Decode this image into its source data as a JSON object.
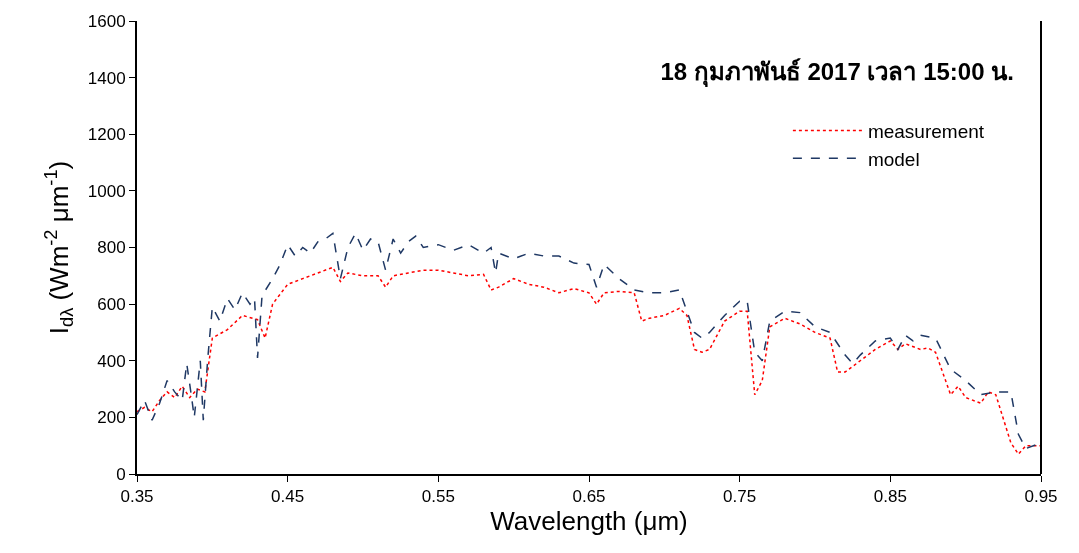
{
  "chart_data": {
    "type": "line",
    "title": "18 กุมภาพันธ์ 2017 เวลา 15:00 น.",
    "xlabel": "Wavelength (μm)",
    "ylabel": "I$_{dλ}$ (Wm$^{-2}$ μm$^{-1}$)",
    "xlim": [
      0.35,
      0.95
    ],
    "xticks": [
      0.35,
      0.45,
      0.55,
      0.65,
      0.75,
      0.85,
      0.95
    ],
    "ylim": [
      0,
      1600
    ],
    "yticks": [
      0,
      200,
      400,
      600,
      800,
      1000,
      1200,
      1400,
      1600
    ],
    "grid": false,
    "legend": "top right",
    "marker": "none",
    "series": [
      {
        "name": "measurement",
        "color": "#ff0000",
        "line_style": "dotted",
        "x": [
          0.35,
          0.355,
          0.36,
          0.365,
          0.37,
          0.375,
          0.38,
          0.385,
          0.39,
          0.395,
          0.4,
          0.41,
          0.42,
          0.43,
          0.435,
          0.44,
          0.45,
          0.46,
          0.47,
          0.48,
          0.485,
          0.49,
          0.5,
          0.51,
          0.515,
          0.52,
          0.53,
          0.54,
          0.55,
          0.56,
          0.57,
          0.58,
          0.585,
          0.59,
          0.6,
          0.61,
          0.62,
          0.63,
          0.64,
          0.65,
          0.655,
          0.66,
          0.67,
          0.68,
          0.685,
          0.69,
          0.7,
          0.71,
          0.715,
          0.72,
          0.725,
          0.73,
          0.74,
          0.75,
          0.755,
          0.76,
          0.765,
          0.77,
          0.78,
          0.79,
          0.8,
          0.81,
          0.815,
          0.82,
          0.83,
          0.84,
          0.85,
          0.855,
          0.86,
          0.87,
          0.875,
          0.88,
          0.89,
          0.895,
          0.9,
          0.91,
          0.915,
          0.92,
          0.93,
          0.935,
          0.94,
          0.95
        ],
        "values": [
          220,
          235,
          220,
          260,
          290,
          270,
          310,
          270,
          300,
          290,
          480,
          510,
          560,
          545,
          480,
          600,
          670,
          690,
          710,
          730,
          680,
          710,
          700,
          700,
          660,
          700,
          710,
          720,
          720,
          710,
          700,
          705,
          650,
          660,
          690,
          670,
          660,
          640,
          655,
          640,
          600,
          640,
          645,
          640,
          540,
          550,
          560,
          585,
          560,
          440,
          430,
          440,
          540,
          575,
          575,
          280,
          330,
          520,
          550,
          530,
          500,
          480,
          360,
          360,
          400,
          440,
          470,
          440,
          460,
          440,
          445,
          430,
          280,
          310,
          270,
          250,
          290,
          280,
          110,
          70,
          100,
          100
        ]
      },
      {
        "name": "model",
        "color": "#1f3864",
        "line_style": "dashed",
        "x": [
          0.35,
          0.355,
          0.36,
          0.365,
          0.37,
          0.375,
          0.38,
          0.383,
          0.386,
          0.388,
          0.392,
          0.394,
          0.397,
          0.4,
          0.405,
          0.41,
          0.415,
          0.42,
          0.425,
          0.428,
          0.43,
          0.433,
          0.44,
          0.445,
          0.45,
          0.455,
          0.46,
          0.465,
          0.47,
          0.475,
          0.48,
          0.485,
          0.49,
          0.495,
          0.5,
          0.505,
          0.51,
          0.515,
          0.52,
          0.525,
          0.53,
          0.535,
          0.54,
          0.55,
          0.56,
          0.57,
          0.58,
          0.585,
          0.588,
          0.59,
          0.6,
          0.61,
          0.62,
          0.63,
          0.64,
          0.65,
          0.655,
          0.66,
          0.67,
          0.68,
          0.69,
          0.7,
          0.71,
          0.72,
          0.725,
          0.73,
          0.74,
          0.75,
          0.755,
          0.76,
          0.765,
          0.77,
          0.78,
          0.79,
          0.8,
          0.81,
          0.82,
          0.825,
          0.83,
          0.84,
          0.85,
          0.855,
          0.86,
          0.865,
          0.87,
          0.88,
          0.89,
          0.9,
          0.91,
          0.92,
          0.93,
          0.935,
          0.94,
          0.95
        ],
        "values": [
          210,
          260,
          190,
          250,
          330,
          290,
          260,
          390,
          280,
          200,
          400,
          190,
          410,
          590,
          540,
          620,
          580,
          640,
          600,
          620,
          410,
          630,
          690,
          740,
          810,
          770,
          800,
          780,
          820,
          830,
          850,
          690,
          800,
          850,
          790,
          830,
          820,
          720,
          830,
          780,
          820,
          840,
          800,
          810,
          790,
          810,
          780,
          800,
          710,
          780,
          760,
          780,
          770,
          770,
          745,
          740,
          660,
          740,
          690,
          650,
          640,
          640,
          650,
          500,
          480,
          500,
          560,
          610,
          610,
          430,
          400,
          540,
          575,
          570,
          520,
          500,
          420,
          390,
          420,
          470,
          480,
          440,
          490,
          470,
          490,
          480,
          370,
          330,
          280,
          290,
          290,
          140,
          90,
          110
        ]
      }
    ]
  }
}
